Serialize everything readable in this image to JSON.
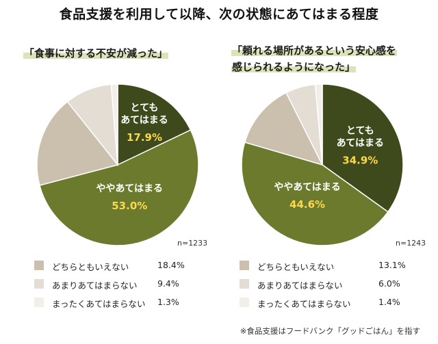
{
  "title": "食品支援を利用して以降、次の状態にあてはまる程度",
  "footnote": "※食品支援はフードバンク「グッドごはん」を指す",
  "colors": {
    "very": "#3e4a1c",
    "somewhat": "#6b7a2c",
    "neither": "#cbbfae",
    "not_much": "#e4ddd3",
    "not_at_all": "#f2eeea",
    "value_highlight": "#ffd84a",
    "subtitle_highlight": "#dde3b4"
  },
  "chart_data": [
    {
      "type": "pie",
      "subtitle_lines": [
        "「食事に対する不安が減った」"
      ],
      "sample_size": "n=1233",
      "slices": [
        {
          "key": "very",
          "label_lines": [
            "とても",
            "あてはまる"
          ],
          "value": 17.9,
          "value_label": "17.9%",
          "color": "#3e4a1c"
        },
        {
          "key": "somewhat",
          "label_lines": [
            "ややあてはまる"
          ],
          "value": 53.0,
          "value_label": "53.0%",
          "color": "#6b7a2c"
        },
        {
          "key": "neither",
          "label": "どちらともいえない",
          "value": 18.4,
          "value_label": "18.4%",
          "color": "#cbbfae"
        },
        {
          "key": "not_much",
          "label": "あまりあてはまらない",
          "value": 9.4,
          "value_label": "9.4%",
          "color": "#e4ddd3"
        },
        {
          "key": "not_at_all",
          "label": "まったくあてはまらない",
          "value": 1.3,
          "value_label": "1.3%",
          "color": "#f2eeea"
        }
      ]
    },
    {
      "type": "pie",
      "subtitle_lines": [
        "「頼れる場所があるという安心感を",
        "感じられるようになった」"
      ],
      "sample_size": "n=1243",
      "slices": [
        {
          "key": "very",
          "label_lines": [
            "とても",
            "あてはまる"
          ],
          "value": 34.9,
          "value_label": "34.9%",
          "color": "#3e4a1c"
        },
        {
          "key": "somewhat",
          "label_lines": [
            "ややあてはまる"
          ],
          "value": 44.6,
          "value_label": "44.6%",
          "color": "#6b7a2c"
        },
        {
          "key": "neither",
          "label": "どちらともいえない",
          "value": 13.1,
          "value_label": "13.1%",
          "color": "#cbbfae"
        },
        {
          "key": "not_much",
          "label": "あまりあてはまらない",
          "value": 6.0,
          "value_label": "6.0%",
          "color": "#e4ddd3"
        },
        {
          "key": "not_at_all",
          "label": "まったくあてはまらない",
          "value": 1.4,
          "value_label": "1.4%",
          "color": "#f2eeea"
        }
      ]
    }
  ]
}
